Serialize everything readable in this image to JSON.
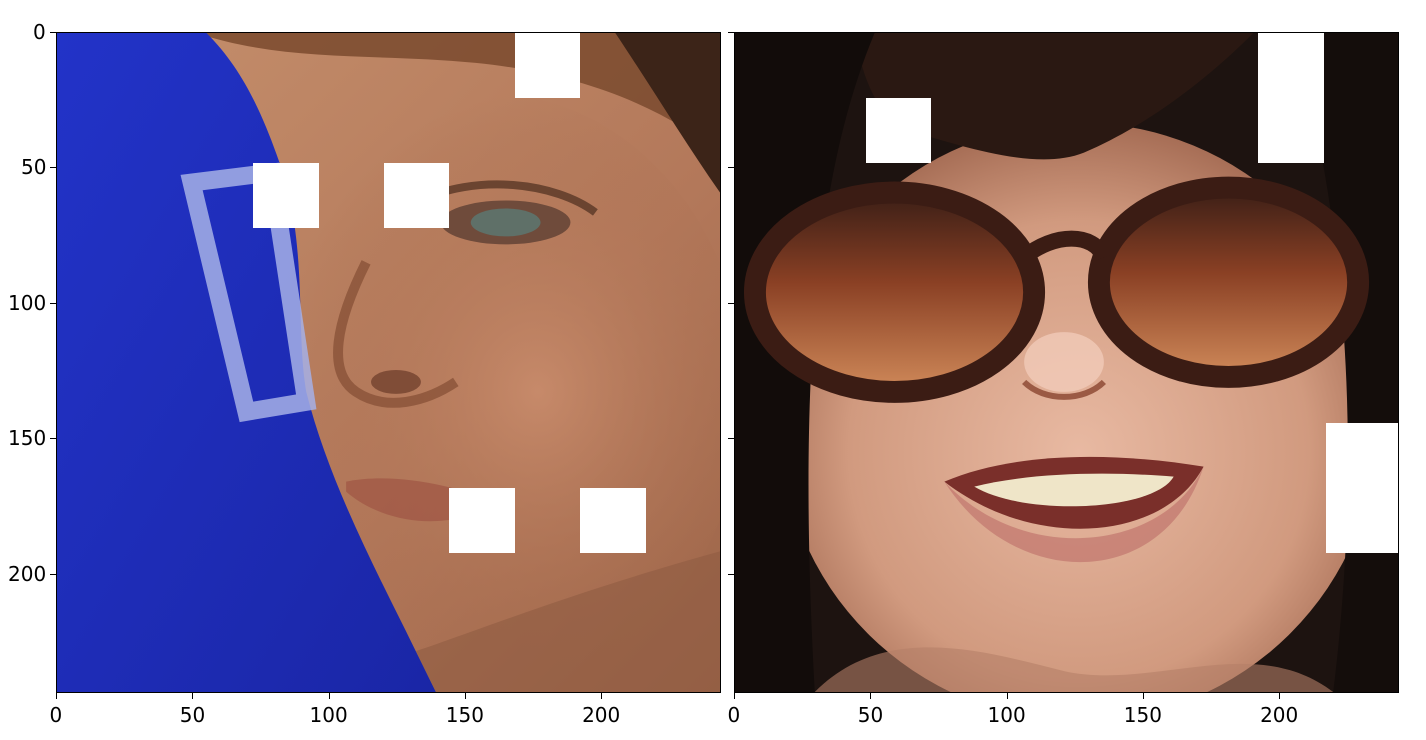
{
  "axes": {
    "left": {
      "x_ticks": [
        "0",
        "50",
        "100",
        "150",
        "200"
      ],
      "y_ticks": [
        "0",
        "50",
        "100",
        "150",
        "200"
      ]
    },
    "right": {
      "x_ticks": [
        "0",
        "50",
        "100",
        "150",
        "200"
      ]
    },
    "image_extent": [
      0,
      244
    ]
  },
  "images": [
    {
      "subject": "face-with-blue-background",
      "mask_patches_data_units": [
        {
          "x": 168,
          "y": 0,
          "w": 24,
          "h": 24
        },
        {
          "x": 72,
          "y": 48,
          "w": 24,
          "h": 24
        },
        {
          "x": 120,
          "y": 48,
          "w": 24,
          "h": 24
        },
        {
          "x": 144,
          "y": 168,
          "w": 24,
          "h": 24
        },
        {
          "x": 192,
          "y": 168,
          "w": 24,
          "h": 24
        }
      ]
    },
    {
      "subject": "smiling-face-with-sunglasses",
      "mask_patches_data_units": [
        {
          "x": 48,
          "y": 24,
          "w": 24,
          "h": 24
        },
        {
          "x": 192,
          "y": 0,
          "w": 24,
          "h": 48
        },
        {
          "x": 217,
          "y": 144,
          "w": 27,
          "h": 48
        }
      ]
    }
  ],
  "colors": {
    "mask": "#ffffff",
    "blue_cloth": "#1f2fc2",
    "skin": "#b97f5e",
    "hair": "#231612",
    "lens": "#b0643a"
  }
}
